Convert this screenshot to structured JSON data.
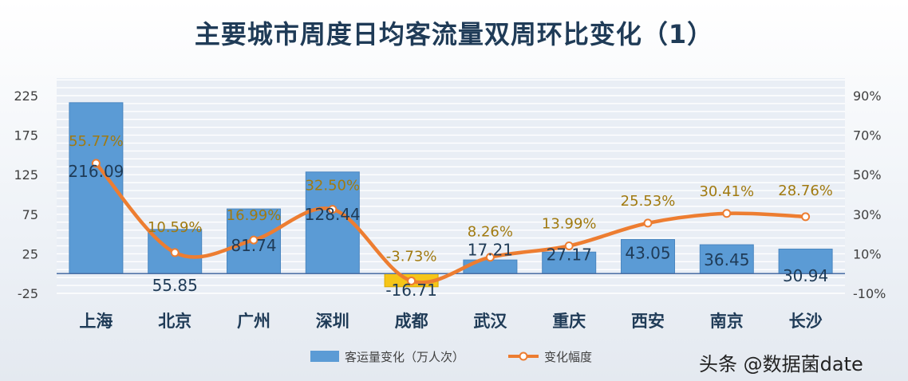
{
  "chart_data": {
    "type": "bar+line",
    "title": "主要城市周度日均客流量双周环比变化（1）",
    "categories": [
      "上海",
      "北京",
      "广州",
      "深圳",
      "成都",
      "武汉",
      "重庆",
      "西安",
      "南京",
      "长沙"
    ],
    "series": [
      {
        "name": "客运量变化（万人次）",
        "type": "bar",
        "axis": "left",
        "values": [
          216.09,
          55.85,
          81.74,
          128.44,
          -16.71,
          17.21,
          27.17,
          43.05,
          36.45,
          30.94
        ],
        "labels": [
          "216.09",
          "55.85",
          "81.74",
          "128.44",
          "-16.71",
          "17.21",
          "27.17",
          "43.05",
          "36.45",
          "30.94"
        ]
      },
      {
        "name": "变化幅度",
        "type": "line",
        "axis": "right",
        "values": [
          55.77,
          10.59,
          16.99,
          32.5,
          -3.73,
          8.26,
          13.99,
          25.53,
          30.41,
          28.76
        ],
        "labels": [
          "55.77%",
          "10.59%",
          "16.99%",
          "32.50%",
          "-3.73%",
          "8.26%",
          "13.99%",
          "25.53%",
          "30.41%",
          "28.76%"
        ]
      }
    ],
    "left_axis": {
      "ylim": [
        -25,
        225
      ],
      "ticks": [
        "-25",
        "25",
        "75",
        "125",
        "175",
        "225"
      ]
    },
    "right_axis": {
      "ylim": [
        -10,
        90
      ],
      "ticks": [
        "-10%",
        "10%",
        "30%",
        "50%",
        "70%",
        "90%"
      ]
    },
    "grid": true,
    "legend_position": "bottom",
    "colors": {
      "bar": "#5b9bd5",
      "bar_border": "#4a86c0",
      "negative_bar": "#f5c518",
      "line": "#ed7d31",
      "line_label": "#a17a10",
      "bar_label": "#1f3b57",
      "grid": "#ffffff"
    }
  },
  "watermark": "头条 @数据菌date"
}
